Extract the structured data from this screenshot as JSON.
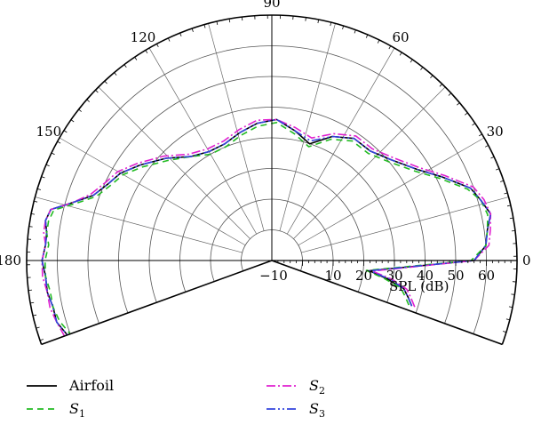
{
  "chart_data": {
    "type": "polar-line",
    "title": "",
    "radial_axis": {
      "label": "SPL (dB)",
      "range": [
        -10,
        70
      ],
      "ticks": [
        -10,
        10,
        20,
        30,
        40,
        50,
        60
      ],
      "tick_labels": [
        "−10",
        "10",
        "20",
        "30",
        "40",
        "50",
        "60"
      ]
    },
    "angular_axis": {
      "unit": "degrees",
      "range": [
        -20,
        200
      ],
      "ticks": [
        0,
        30,
        60,
        90,
        120,
        150,
        180
      ],
      "tick_labels": [
        "0",
        "30",
        "60",
        "90",
        "120",
        "150",
        "180"
      ]
    },
    "grid": true,
    "legend_position": "bottom",
    "series": [
      {
        "name": "Airfoil",
        "label_main": "Airfoil",
        "label_sub": "",
        "color": "#000000",
        "dash": "solid",
        "points": [
          [
            -18,
            38
          ],
          [
            -15,
            36
          ],
          [
            -12,
            34
          ],
          [
            -9,
            28
          ],
          [
            -6,
            22
          ],
          [
            0,
            56
          ],
          [
            4,
            60
          ],
          [
            8,
            61
          ],
          [
            12,
            63
          ],
          [
            16,
            61
          ],
          [
            20,
            59
          ],
          [
            26,
            52
          ],
          [
            32,
            46
          ],
          [
            40,
            41
          ],
          [
            48,
            38
          ],
          [
            56,
            38
          ],
          [
            64,
            35
          ],
          [
            72,
            30
          ],
          [
            80,
            33
          ],
          [
            88,
            36
          ],
          [
            96,
            35
          ],
          [
            104,
            33
          ],
          [
            112,
            31
          ],
          [
            120,
            31
          ],
          [
            128,
            33
          ],
          [
            136,
            38
          ],
          [
            144,
            43
          ],
          [
            150,
            47
          ],
          [
            155,
            49
          ],
          [
            160,
            52
          ],
          [
            164,
            58
          ],
          [
            167,
            64
          ],
          [
            170,
            65
          ],
          [
            173,
            64
          ],
          [
            176,
            64
          ],
          [
            180,
            65
          ],
          [
            184,
            64
          ],
          [
            188,
            64
          ],
          [
            192,
            63
          ],
          [
            196,
            63
          ],
          [
            200,
            61
          ]
        ]
      },
      {
        "name": "S1",
        "label_main": "S",
        "label_sub": "1",
        "color": "#22bb22",
        "dash": "7,5",
        "points": [
          [
            -18,
            37
          ],
          [
            -15,
            35
          ],
          [
            -12,
            33
          ],
          [
            -9,
            27
          ],
          [
            -6,
            21
          ],
          [
            0,
            55
          ],
          [
            4,
            60
          ],
          [
            8,
            61
          ],
          [
            12,
            62
          ],
          [
            16,
            61
          ],
          [
            20,
            58
          ],
          [
            26,
            51
          ],
          [
            32,
            45
          ],
          [
            40,
            40
          ],
          [
            48,
            37
          ],
          [
            56,
            37
          ],
          [
            64,
            34
          ],
          [
            72,
            29
          ],
          [
            80,
            32
          ],
          [
            88,
            35
          ],
          [
            96,
            34
          ],
          [
            104,
            32
          ],
          [
            112,
            30
          ],
          [
            120,
            30
          ],
          [
            128,
            33
          ],
          [
            136,
            37
          ],
          [
            144,
            42
          ],
          [
            150,
            46
          ],
          [
            155,
            48
          ],
          [
            160,
            51
          ],
          [
            164,
            57
          ],
          [
            167,
            63
          ],
          [
            170,
            64
          ],
          [
            173,
            64
          ],
          [
            176,
            63
          ],
          [
            180,
            64
          ],
          [
            184,
            64
          ],
          [
            188,
            63
          ],
          [
            192,
            63
          ],
          [
            196,
            62
          ],
          [
            200,
            60
          ]
        ]
      },
      {
        "name": "S2",
        "label_main": "S",
        "label_sub": "2",
        "color": "#e020d0",
        "dash": "10,3,2,3",
        "points": [
          [
            -18,
            39
          ],
          [
            -15,
            37
          ],
          [
            -12,
            35
          ],
          [
            -9,
            30
          ],
          [
            -6,
            23
          ],
          [
            0,
            56
          ],
          [
            4,
            61
          ],
          [
            8,
            62
          ],
          [
            12,
            63
          ],
          [
            16,
            62
          ],
          [
            20,
            60
          ],
          [
            26,
            53
          ],
          [
            32,
            47
          ],
          [
            40,
            42
          ],
          [
            48,
            39
          ],
          [
            56,
            39
          ],
          [
            64,
            36
          ],
          [
            72,
            32
          ],
          [
            80,
            34
          ],
          [
            88,
            36
          ],
          [
            96,
            36
          ],
          [
            104,
            34
          ],
          [
            112,
            32
          ],
          [
            120,
            32
          ],
          [
            128,
            34
          ],
          [
            136,
            39
          ],
          [
            144,
            44
          ],
          [
            150,
            48
          ],
          [
            155,
            50
          ],
          [
            160,
            53
          ],
          [
            164,
            58
          ],
          [
            167,
            64
          ],
          [
            170,
            65
          ],
          [
            173,
            65
          ],
          [
            176,
            64
          ],
          [
            180,
            65
          ],
          [
            184,
            65
          ],
          [
            188,
            64
          ],
          [
            192,
            64
          ],
          [
            196,
            63
          ],
          [
            200,
            62
          ]
        ]
      },
      {
        "name": "S3",
        "label_main": "S",
        "label_sub": "3",
        "color": "#3344dd",
        "dash": "10,3,2,3,2,3",
        "points": [
          [
            -18,
            38
          ],
          [
            -15,
            36
          ],
          [
            -12,
            34
          ],
          [
            -9,
            29
          ],
          [
            -6,
            22
          ],
          [
            0,
            56
          ],
          [
            4,
            60
          ],
          [
            8,
            61
          ],
          [
            12,
            63
          ],
          [
            16,
            61
          ],
          [
            20,
            59
          ],
          [
            26,
            52
          ],
          [
            32,
            46
          ],
          [
            40,
            41
          ],
          [
            48,
            38
          ],
          [
            56,
            38
          ],
          [
            64,
            35
          ],
          [
            72,
            31
          ],
          [
            80,
            33
          ],
          [
            88,
            36
          ],
          [
            96,
            35
          ],
          [
            104,
            33
          ],
          [
            112,
            31
          ],
          [
            120,
            31
          ],
          [
            128,
            33
          ],
          [
            136,
            38
          ],
          [
            144,
            43
          ],
          [
            150,
            47
          ],
          [
            155,
            49
          ],
          [
            160,
            52
          ],
          [
            164,
            58
          ],
          [
            167,
            64
          ],
          [
            170,
            65
          ],
          [
            173,
            64
          ],
          [
            176,
            64
          ],
          [
            180,
            65
          ],
          [
            184,
            64
          ],
          [
            188,
            64
          ],
          [
            192,
            63
          ],
          [
            196,
            63
          ],
          [
            200,
            61
          ]
        ]
      }
    ]
  }
}
